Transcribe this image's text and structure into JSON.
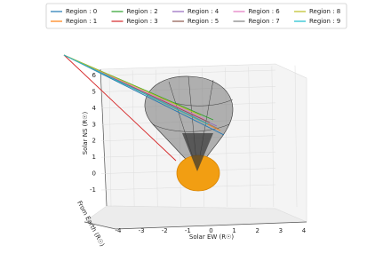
{
  "chart_data": {
    "type": "line3d",
    "xlabel": "Solar EW (R☉)",
    "ylabel": "From Earth (R☉)",
    "zlabel": "Solar NS (R☉)",
    "xlim": [
      -4,
      4
    ],
    "xticks": [
      -4,
      -3,
      -2,
      -1,
      0,
      1,
      2,
      3,
      4
    ],
    "zlim": [
      -1,
      6
    ],
    "zticks": [
      -1,
      0,
      1,
      2,
      3,
      4,
      5,
      6
    ],
    "grid": true,
    "legend": "top",
    "series": [
      {
        "name": "Region : 0",
        "color": "#1f77b4"
      },
      {
        "name": "Region : 1",
        "color": "#ff7f0e"
      },
      {
        "name": "Region : 2",
        "color": "#2ca02c"
      },
      {
        "name": "Region : 3",
        "color": "#d62728"
      },
      {
        "name": "Region : 4",
        "color": "#9467bd"
      },
      {
        "name": "Region : 5",
        "color": "#8c564b"
      },
      {
        "name": "Region : 6",
        "color": "#e377c2"
      },
      {
        "name": "Region : 7",
        "color": "#7f7f7f"
      },
      {
        "name": "Region : 8",
        "color": "#bcbd22"
      },
      {
        "name": "Region : 9",
        "color": "#17becf"
      }
    ]
  }
}
